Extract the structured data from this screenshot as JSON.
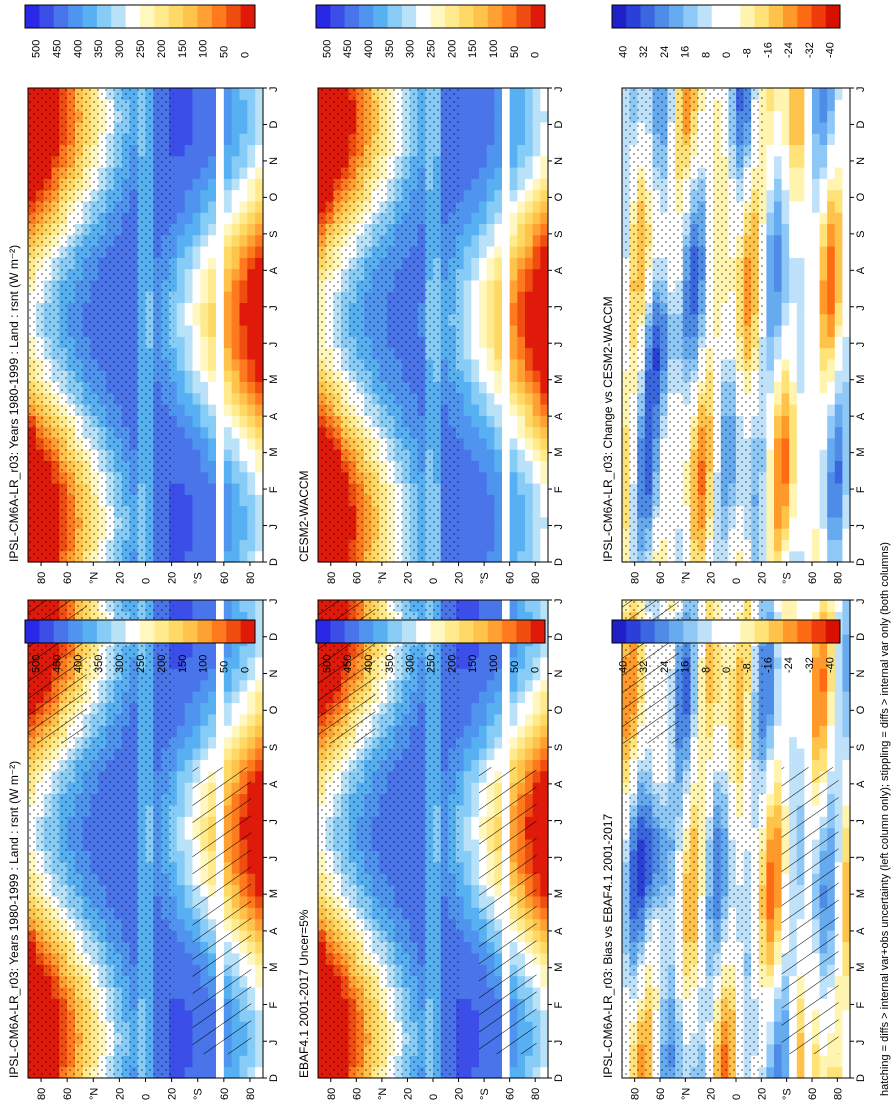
{
  "footer": "hatching = diffs > internal var+obs uncertainty (left column only); stippling = diffs > internal var only (both columns)",
  "colors": {
    "abs_colorbar": [
      "#2828e6",
      "#3c4ee8",
      "#4a74ea",
      "#4f94ee",
      "#56b0f2",
      "#86ccf6",
      "#b9e2f8",
      "#ffffff",
      "#fff7c0",
      "#ffeb8e",
      "#ffd966",
      "#ffc24a",
      "#ffa033",
      "#ff7a1e",
      "#f04e10",
      "#e01a0a"
    ],
    "diff_colorbar": [
      "#2020c8",
      "#2a40d8",
      "#3a66e0",
      "#4e8ce8",
      "#66abf0",
      "#8ec8f6",
      "#bfe2fa",
      "#ffffff",
      "#ffffff",
      "#fff4b0",
      "#ffe278",
      "#ffc24a",
      "#ff9a2a",
      "#ff6a14",
      "#f03c0a",
      "#d81000"
    ]
  },
  "chart_data": [
    {
      "type": "heatmap",
      "panel": "top-left",
      "title": "IPSL-CM6A-LR_r03: Years 1980-1999 : Land : rsnt (W m⁻²)",
      "x_ticks": [
        "D",
        "J",
        "F",
        "M",
        "A",
        "M",
        "J",
        "J",
        "A",
        "S",
        "O",
        "N",
        "D",
        "J"
      ],
      "y_ticks": [
        "80",
        "60",
        "°N",
        "20",
        "0",
        "20",
        "°S",
        "60",
        "80"
      ],
      "colorbar_ticks": [
        "500",
        "450",
        "400",
        "350",
        "300",
        "250",
        "200",
        "150",
        "100",
        "50",
        "0"
      ],
      "value_range": [
        0,
        500
      ],
      "hatching": true,
      "stippling": true
    },
    {
      "type": "heatmap",
      "panel": "top-right",
      "title": "IPSL-CM6A-LR_r03: Years 1980-1999 : Land : rsnt (W m⁻²)",
      "x_ticks": [
        "D",
        "J",
        "F",
        "M",
        "A",
        "M",
        "J",
        "J",
        "A",
        "S",
        "O",
        "N",
        "D",
        "J"
      ],
      "y_ticks": [
        "80",
        "60",
        "°N",
        "20",
        "0",
        "20",
        "°S",
        "60",
        "80"
      ],
      "colorbar_ticks": [
        "500",
        "450",
        "400",
        "350",
        "300",
        "250",
        "200",
        "150",
        "100",
        "50",
        "0"
      ],
      "value_range": [
        0,
        500
      ],
      "hatching": false,
      "stippling": true
    },
    {
      "type": "heatmap",
      "panel": "middle-left",
      "title": "EBAF4.1 2001-2017 Uncer=5%",
      "x_ticks": [
        "D",
        "J",
        "F",
        "M",
        "A",
        "M",
        "J",
        "J",
        "A",
        "S",
        "O",
        "N",
        "D",
        "J"
      ],
      "y_ticks": [
        "80",
        "60",
        "°N",
        "20",
        "0",
        "20",
        "°S",
        "60",
        "80"
      ],
      "colorbar_ticks": [
        "500",
        "450",
        "400",
        "350",
        "300",
        "250",
        "200",
        "150",
        "100",
        "50",
        "0"
      ],
      "value_range": [
        0,
        500
      ],
      "hatching": true,
      "stippling": true
    },
    {
      "type": "heatmap",
      "panel": "middle-right",
      "title": "CESM2-WACCM",
      "x_ticks": [
        "D",
        "J",
        "F",
        "M",
        "A",
        "M",
        "J",
        "J",
        "A",
        "S",
        "O",
        "N",
        "D",
        "J"
      ],
      "y_ticks": [
        "80",
        "60",
        "°N",
        "20",
        "0",
        "20",
        "°S",
        "60",
        "80"
      ],
      "colorbar_ticks": [
        "500",
        "450",
        "400",
        "350",
        "300",
        "250",
        "200",
        "150",
        "100",
        "50",
        "0"
      ],
      "value_range": [
        0,
        500
      ],
      "hatching": false,
      "stippling": true
    },
    {
      "type": "heatmap",
      "panel": "bottom-left",
      "title": "IPSL-CM6A-LR_r03: Bias vs EBAF4.1 2001-2017",
      "x_ticks": [
        "D",
        "J",
        "F",
        "M",
        "A",
        "M",
        "J",
        "J",
        "A",
        "S",
        "O",
        "N",
        "D",
        "J"
      ],
      "y_ticks": [
        "80",
        "60",
        "°N",
        "20",
        "0",
        "20",
        "°S",
        "60",
        "80"
      ],
      "colorbar_ticks": [
        "40",
        "32",
        "24",
        "16",
        "8",
        "0",
        "-8",
        "-16",
        "-24",
        "-32",
        "-40"
      ],
      "value_range": [
        -40,
        40
      ],
      "hatching": true,
      "stippling": true
    },
    {
      "type": "heatmap",
      "panel": "bottom-right",
      "title": "IPSL-CM6A-LR_r03: Change vs CESM2-WACCM",
      "x_ticks": [
        "D",
        "J",
        "F",
        "M",
        "A",
        "M",
        "J",
        "J",
        "A",
        "S",
        "O",
        "N",
        "D",
        "J"
      ],
      "y_ticks": [
        "80",
        "60",
        "°N",
        "20",
        "0",
        "20",
        "°S",
        "60",
        "80"
      ],
      "colorbar_ticks": [
        "40",
        "32",
        "24",
        "16",
        "8",
        "0",
        "-8",
        "-16",
        "-24",
        "-32",
        "-40"
      ],
      "value_range": [
        -40,
        40
      ],
      "hatching": false,
      "stippling": true
    }
  ]
}
